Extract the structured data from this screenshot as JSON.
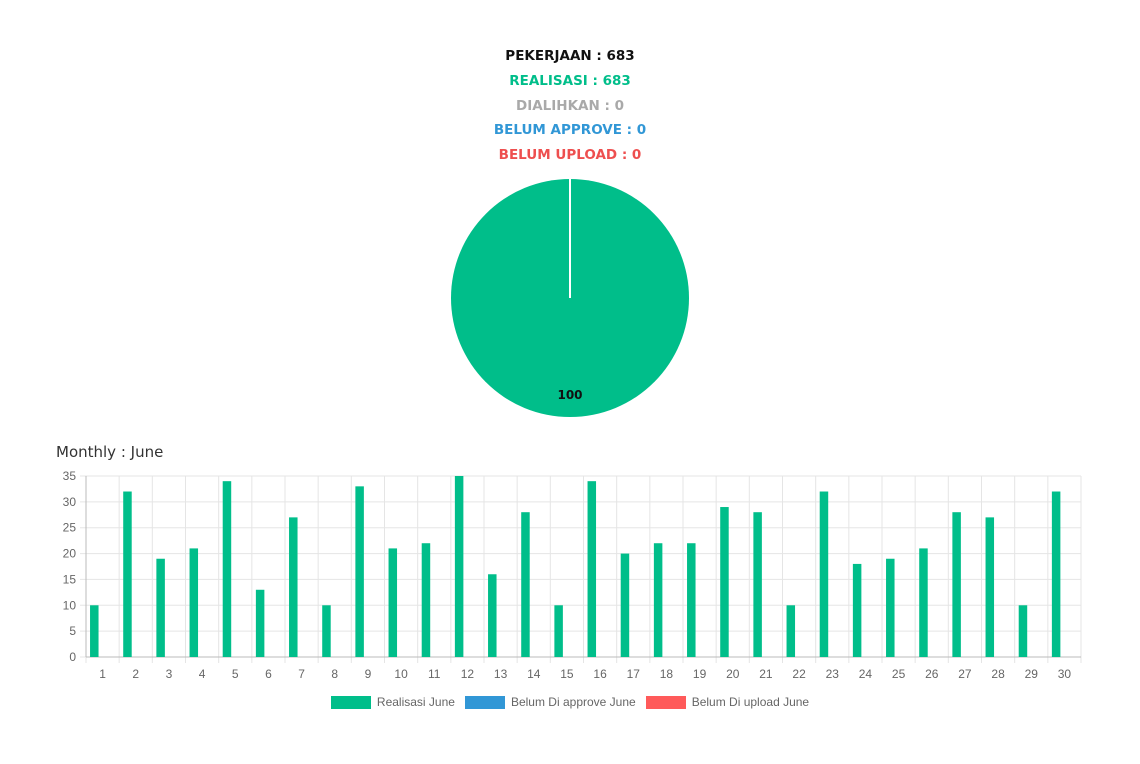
{
  "summary": {
    "pekerjaan": "PEKERJAAN : 683",
    "realisasi": "REALISASI : 683",
    "dialihkan": "DIALIHKAN : 0",
    "belum_approve": "BELUM APPROVE : 0",
    "belum_upload": "BELUM UPLOAD : 0"
  },
  "colors": {
    "pekerjaan": "#111111",
    "realisasi": "#00be8a",
    "dialihkan": "#a9a9a9",
    "belum_approve": "#3197d6",
    "belum_upload": "#ee4f4f"
  },
  "monthly": {
    "title": "Monthly : June"
  },
  "chart_data": [
    {
      "type": "pie",
      "slices": [
        {
          "value": 100,
          "label": "100",
          "color": "#00be8a"
        }
      ]
    },
    {
      "type": "bar",
      "categories": [
        "1",
        "2",
        "3",
        "4",
        "5",
        "6",
        "7",
        "8",
        "9",
        "10",
        "11",
        "12",
        "13",
        "14",
        "15",
        "16",
        "17",
        "18",
        "19",
        "20",
        "21",
        "22",
        "23",
        "24",
        "25",
        "26",
        "27",
        "28",
        "29",
        "30"
      ],
      "series": [
        {
          "name": "Realisasi June",
          "color": "#00be8a",
          "values": [
            10,
            32,
            19,
            21,
            34,
            13,
            27,
            10,
            33,
            21,
            22,
            35,
            16,
            28,
            10,
            34,
            20,
            22,
            22,
            29,
            28,
            10,
            32,
            18,
            19,
            21,
            28,
            27,
            10,
            32
          ]
        },
        {
          "name": "Belum Di approve June",
          "color": "#3197d6",
          "values": [
            0,
            0,
            0,
            0,
            0,
            0,
            0,
            0,
            0,
            0,
            0,
            0,
            0,
            0,
            0,
            0,
            0,
            0,
            0,
            0,
            0,
            0,
            0,
            0,
            0,
            0,
            0,
            0,
            0,
            0
          ]
        },
        {
          "name": "Belum Di upload June",
          "color": "#ff5a5a",
          "values": [
            0,
            0,
            0,
            0,
            0,
            0,
            0,
            0,
            0,
            0,
            0,
            0,
            0,
            0,
            0,
            0,
            0,
            0,
            0,
            0,
            0,
            0,
            0,
            0,
            0,
            0,
            0,
            0,
            0,
            0
          ]
        }
      ],
      "ylim": [
        0,
        35
      ],
      "yticks": [
        0,
        5,
        10,
        15,
        20,
        25,
        30,
        35
      ],
      "grid": true,
      "legend": "bottom"
    }
  ]
}
